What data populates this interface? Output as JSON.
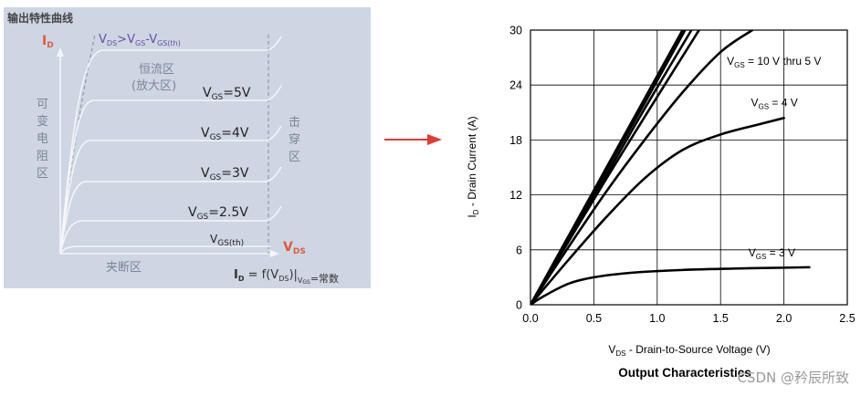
{
  "left_panel": {
    "title": "输出特性曲线",
    "y_axis_label": "I",
    "y_axis_sub": "D",
    "x_axis_label": "V",
    "x_axis_sub": "DS",
    "boundary_label": {
      "v1": "V",
      "s1": "DS",
      "gt": ">",
      "v2": "V",
      "s2": "GS",
      "minus": "-",
      "v3": "V",
      "s3": "GS(th)"
    },
    "region_constant": "恒流区",
    "region_amplify": "(放大区)",
    "region_variable": "可变电阻区",
    "region_breakdown": "击穿区",
    "region_cutoff": "夹断区",
    "equation": {
      "lhs": "I",
      "lhs_sub": "D",
      "eq": " = f(V",
      "v_sub": "DS",
      "close": ")|",
      "cond_v": "V",
      "cond_sub": "GS",
      "cond_text": "=常数"
    },
    "curves": [
      {
        "label_v": "V",
        "label_sub": "GS",
        "label_val": "=5V"
      },
      {
        "label_v": "V",
        "label_sub": "GS",
        "label_val": "=4V"
      },
      {
        "label_v": "V",
        "label_sub": "GS",
        "label_val": "=3V"
      },
      {
        "label_v": "V",
        "label_sub": "GS",
        "label_val": "=2.5V"
      },
      {
        "label_v": "V",
        "label_sub": "GS(th)",
        "label_val": ""
      }
    ]
  },
  "arrow_color": "#e53935",
  "chart_data": {
    "type": "line",
    "title": "Output Characteristics",
    "xlabel": {
      "v": "V",
      "sub": "DS",
      "text": " - Drain-to-Source Voltage (V)"
    },
    "ylabel": {
      "v": "I",
      "sub": "D",
      "text": " - Drain Current (A)"
    },
    "xlim": [
      0,
      2.5
    ],
    "ylim": [
      0,
      30
    ],
    "xticks": [
      "0.0",
      "0.5",
      "1.0",
      "1.5",
      "2.0",
      "2.5"
    ],
    "xtick_values": [
      0,
      0.5,
      1.0,
      1.5,
      2.0,
      2.5
    ],
    "yticks": [
      "0",
      "6",
      "12",
      "18",
      "24",
      "30"
    ],
    "ytick_values": [
      0,
      6,
      12,
      18,
      24,
      30
    ],
    "grid": true,
    "series": [
      {
        "name": "",
        "x": [
          0,
          0.3,
          0.6,
          0.9,
          1.2
        ],
        "y": [
          0,
          7.5,
          15,
          22.5,
          30
        ]
      },
      {
        "name": "",
        "x": [
          0,
          0.3,
          0.6,
          0.9,
          1.22
        ],
        "y": [
          0,
          7.3,
          14.7,
          22.0,
          30
        ]
      },
      {
        "name": "",
        "x": [
          0,
          0.3,
          0.6,
          0.9,
          1.27
        ],
        "y": [
          0,
          7.1,
          14.2,
          21.4,
          30
        ]
      },
      {
        "name": "",
        "x": [
          0,
          0.3,
          0.6,
          0.9,
          1.33
        ],
        "y": [
          0,
          6.9,
          13.8,
          20.5,
          30
        ]
      },
      {
        "name": "",
        "x": [
          0,
          0.3,
          0.6,
          0.9,
          1.2,
          1.5,
          1.75
        ],
        "y": [
          0,
          6.3,
          12.4,
          18.0,
          23.2,
          27.6,
          30
        ]
      },
      {
        "name": "",
        "x": [
          0,
          0.3,
          0.6,
          0.9,
          1.2,
          1.5,
          1.8,
          2.0
        ],
        "y": [
          0,
          4.9,
          9.6,
          13.8,
          16.9,
          18.6,
          19.7,
          20.4
        ]
      },
      {
        "name": "",
        "x": [
          0,
          0.1,
          0.3,
          0.5,
          0.8,
          1.2,
          1.6,
          2.0,
          2.2
        ],
        "y": [
          0,
          0.9,
          2.3,
          3.0,
          3.5,
          3.8,
          3.95,
          4.05,
          4.1
        ]
      }
    ],
    "annotations": [
      {
        "v": "V",
        "sub": "GS",
        "text": " = 10 V thru 5 V",
        "at_x": 1.55,
        "at_y": 26.2
      },
      {
        "v": "V",
        "sub": "GS",
        "text": " = 4 V",
        "at_x": 1.74,
        "at_y": 21.7
      },
      {
        "v": "V",
        "sub": "GS",
        "text": " = 3 V",
        "at_x": 1.72,
        "at_y": 5.3
      }
    ]
  },
  "watermark": "CSDN @矜辰所致"
}
